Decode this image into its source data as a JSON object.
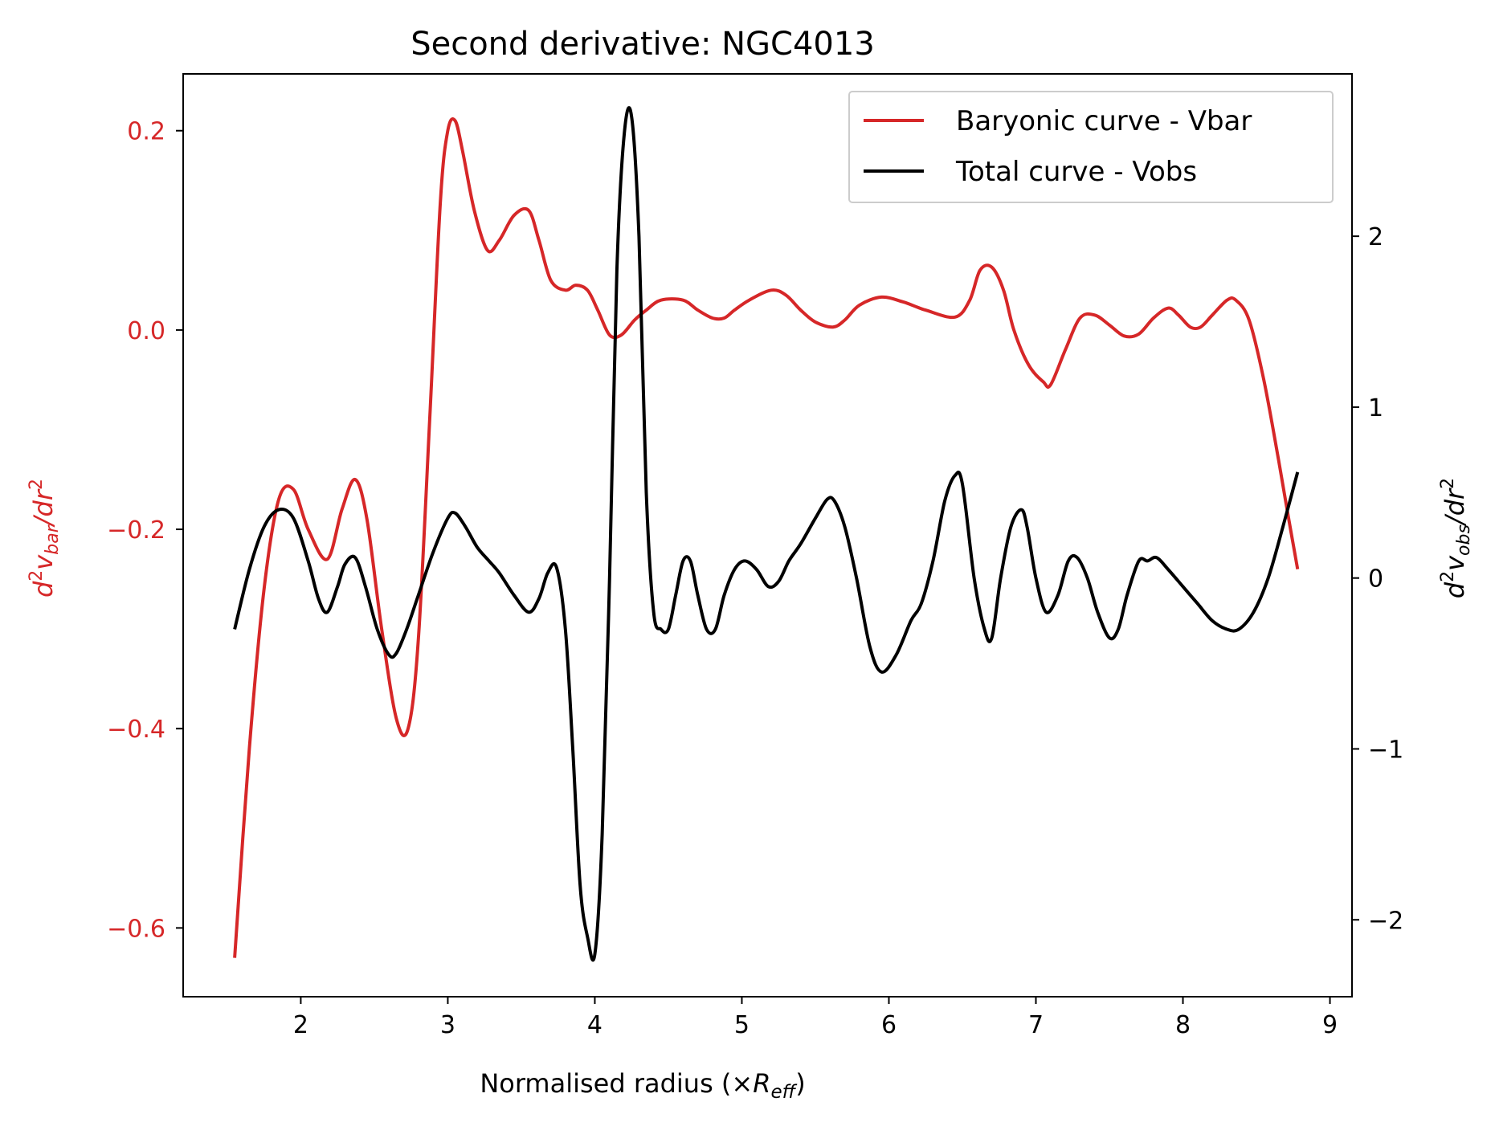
{
  "chart_data": {
    "type": "line",
    "title": "Second derivative: NGC4013",
    "xlabel": {
      "base": "Normalised radius (×",
      "var": "R",
      "sub": "eff",
      "close": ")"
    },
    "ylabel_left": {
      "d": "d",
      "sup1": "2",
      "v": "v",
      "sub": "bar",
      "slash": "/",
      "dr": "dr",
      "sup2": "2"
    },
    "ylabel_right": {
      "d": "d",
      "sup1": "2",
      "v": "v",
      "sub": "obs",
      "slash": "/",
      "dr": "dr",
      "sup2": "2"
    },
    "xlim": [
      1.2,
      9.15
    ],
    "ylim_left": [
      -0.669,
      0.257
    ],
    "ylim_right": [
      -2.45,
      2.95
    ],
    "xticks": [
      2,
      3,
      4,
      5,
      6,
      7,
      8,
      9
    ],
    "yticks_left": [
      -0.6,
      -0.4,
      -0.2,
      0.0,
      0.2
    ],
    "yticks_left_labels": [
      "−0.6",
      "−0.4",
      "−0.2",
      "0.0",
      "0.2"
    ],
    "yticks_right": [
      -2,
      -1,
      0,
      1,
      2
    ],
    "yticks_right_labels": [
      "−2",
      "−1",
      "0",
      "1",
      "2"
    ],
    "legend_position": "top-right",
    "colors": {
      "vbar": "#d62728",
      "vobs": "#000000"
    },
    "series": [
      {
        "name": "Baryonic curve - Vbar",
        "axis": "left",
        "color": "#d62728",
        "x": [
          1.55,
          1.65,
          1.75,
          1.85,
          1.95,
          2.05,
          2.18,
          2.28,
          2.37,
          2.45,
          2.55,
          2.65,
          2.73,
          2.8,
          2.88,
          2.95,
          3.0,
          3.05,
          3.1,
          3.18,
          3.27,
          3.35,
          3.45,
          3.55,
          3.62,
          3.7,
          3.8,
          3.87,
          3.95,
          4.02,
          4.1,
          4.18,
          4.27,
          4.35,
          4.45,
          4.6,
          4.7,
          4.8,
          4.88,
          4.95,
          5.05,
          5.2,
          5.3,
          5.4,
          5.5,
          5.62,
          5.7,
          5.8,
          5.95,
          6.1,
          6.25,
          6.45,
          6.55,
          6.62,
          6.7,
          6.78,
          6.85,
          6.95,
          7.05,
          7.1,
          7.2,
          7.3,
          7.4,
          7.5,
          7.6,
          7.7,
          7.8,
          7.9,
          7.97,
          8.05,
          8.12,
          8.2,
          8.3,
          8.36,
          8.45,
          8.55,
          8.65,
          8.72,
          8.78
        ],
        "y": [
          -0.63,
          -0.42,
          -0.26,
          -0.17,
          -0.16,
          -0.2,
          -0.23,
          -0.18,
          -0.15,
          -0.19,
          -0.3,
          -0.39,
          -0.4,
          -0.31,
          -0.08,
          0.13,
          0.2,
          0.21,
          0.18,
          0.12,
          0.08,
          0.09,
          0.115,
          0.12,
          0.09,
          0.05,
          0.04,
          0.045,
          0.04,
          0.02,
          -0.005,
          -0.005,
          0.01,
          0.02,
          0.03,
          0.03,
          0.02,
          0.012,
          0.012,
          0.02,
          0.03,
          0.04,
          0.035,
          0.02,
          0.008,
          0.003,
          0.01,
          0.025,
          0.033,
          0.028,
          0.02,
          0.013,
          0.03,
          0.06,
          0.063,
          0.04,
          0.0,
          -0.035,
          -0.052,
          -0.055,
          -0.02,
          0.012,
          0.015,
          0.005,
          -0.006,
          -0.004,
          0.012,
          0.022,
          0.015,
          0.003,
          0.003,
          0.015,
          0.03,
          0.03,
          0.01,
          -0.05,
          -0.13,
          -0.19,
          -0.24
        ]
      },
      {
        "name": "Total curve - Vobs",
        "axis": "right",
        "color": "#000000",
        "x": [
          1.55,
          1.65,
          1.75,
          1.85,
          1.95,
          2.05,
          2.12,
          2.18,
          2.25,
          2.3,
          2.37,
          2.44,
          2.52,
          2.6,
          2.65,
          2.72,
          2.8,
          2.9,
          3.0,
          3.05,
          3.12,
          3.2,
          3.28,
          3.35,
          3.45,
          3.55,
          3.62,
          3.68,
          3.74,
          3.8,
          3.85,
          3.9,
          3.95,
          4.0,
          4.05,
          4.1,
          4.15,
          4.2,
          4.25,
          4.3,
          4.35,
          4.4,
          4.45,
          4.5,
          4.55,
          4.6,
          4.65,
          4.7,
          4.76,
          4.82,
          4.88,
          4.95,
          5.02,
          5.1,
          5.18,
          5.25,
          5.32,
          5.4,
          5.5,
          5.58,
          5.63,
          5.7,
          5.78,
          5.87,
          5.95,
          6.05,
          6.15,
          6.22,
          6.3,
          6.38,
          6.45,
          6.5,
          6.58,
          6.65,
          6.7,
          6.76,
          6.83,
          6.9,
          6.94,
          7.0,
          7.07,
          7.15,
          7.22,
          7.28,
          7.35,
          7.42,
          7.5,
          7.56,
          7.62,
          7.7,
          7.76,
          7.82,
          7.9,
          8.0,
          8.1,
          8.2,
          8.3,
          8.38,
          8.48,
          8.58,
          8.68,
          8.78
        ],
        "y": [
          -0.3,
          0.05,
          0.3,
          0.4,
          0.35,
          0.1,
          -0.12,
          -0.2,
          -0.05,
          0.08,
          0.12,
          -0.05,
          -0.3,
          -0.45,
          -0.44,
          -0.3,
          -0.1,
          0.15,
          0.35,
          0.38,
          0.3,
          0.18,
          0.1,
          0.03,
          -0.1,
          -0.2,
          -0.12,
          0.03,
          0.06,
          -0.3,
          -1.0,
          -1.8,
          -2.1,
          -2.2,
          -1.5,
          0.0,
          1.8,
          2.6,
          2.7,
          2.0,
          0.5,
          -0.2,
          -0.3,
          -0.3,
          -0.1,
          0.1,
          0.1,
          -0.1,
          -0.3,
          -0.3,
          -0.1,
          0.05,
          0.1,
          0.05,
          -0.05,
          -0.02,
          0.1,
          0.2,
          0.35,
          0.46,
          0.45,
          0.3,
          0.0,
          -0.4,
          -0.55,
          -0.45,
          -0.25,
          -0.15,
          0.1,
          0.45,
          0.6,
          0.55,
          0.0,
          -0.3,
          -0.35,
          0.0,
          0.3,
          0.4,
          0.3,
          0.0,
          -0.2,
          -0.1,
          0.1,
          0.12,
          0.0,
          -0.2,
          -0.35,
          -0.3,
          -0.1,
          0.1,
          0.1,
          0.12,
          0.05,
          -0.05,
          -0.15,
          -0.25,
          -0.3,
          -0.3,
          -0.2,
          0.0,
          0.3,
          0.62
        ]
      }
    ]
  }
}
